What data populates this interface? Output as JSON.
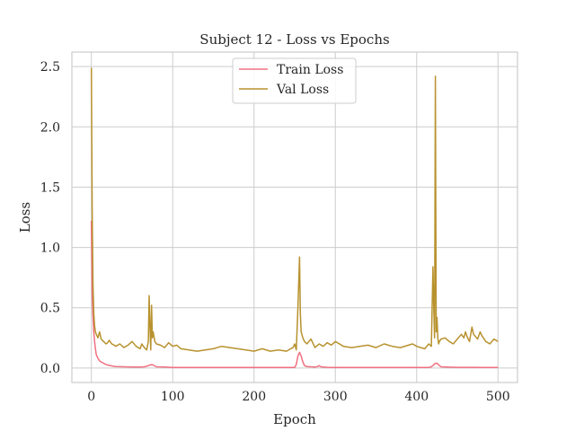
{
  "chart_data": {
    "type": "line",
    "title": "Subject 12 - Loss vs Epochs",
    "xlabel": "Epoch",
    "ylabel": "Loss",
    "xlim": [
      -24,
      524
    ],
    "ylim": [
      -0.12,
      2.62
    ],
    "xticks": [
      0,
      100,
      200,
      300,
      400,
      500
    ],
    "yticks": [
      0.0,
      0.5,
      1.0,
      1.5,
      2.0,
      2.5
    ],
    "xtick_labels": [
      "0",
      "100",
      "200",
      "300",
      "400",
      "500"
    ],
    "ytick_labels": [
      "0.0",
      "0.5",
      "1.0",
      "1.5",
      "2.0",
      "2.5"
    ],
    "grid": true,
    "legend_position": "top-center",
    "series": [
      {
        "name": "Train Loss",
        "color": "#f07080",
        "x": [
          0,
          1,
          2,
          3,
          4,
          5,
          6,
          8,
          10,
          12,
          15,
          18,
          20,
          25,
          30,
          40,
          50,
          60,
          65,
          68,
          70,
          72,
          74,
          76,
          78,
          80,
          90,
          100,
          150,
          200,
          250,
          252,
          254,
          256,
          258,
          260,
          262,
          265,
          270,
          275,
          278,
          280,
          282,
          290,
          300,
          350,
          400,
          415,
          418,
          420,
          422,
          424,
          426,
          428,
          430,
          440,
          450,
          460,
          470,
          480,
          490,
          500
        ],
        "y": [
          1.22,
          0.6,
          0.42,
          0.3,
          0.22,
          0.16,
          0.11,
          0.08,
          0.06,
          0.05,
          0.04,
          0.03,
          0.025,
          0.018,
          0.012,
          0.01,
          0.008,
          0.008,
          0.01,
          0.015,
          0.02,
          0.025,
          0.028,
          0.025,
          0.018,
          0.01,
          0.008,
          0.005,
          0.005,
          0.004,
          0.004,
          0.03,
          0.1,
          0.13,
          0.1,
          0.05,
          0.02,
          0.012,
          0.01,
          0.008,
          0.012,
          0.02,
          0.01,
          0.006,
          0.005,
          0.005,
          0.004,
          0.005,
          0.01,
          0.02,
          0.035,
          0.04,
          0.035,
          0.02,
          0.01,
          0.007,
          0.006,
          0.006,
          0.006,
          0.005,
          0.005,
          0.005
        ]
      },
      {
        "name": "Val Loss",
        "color": "#b8922e",
        "x": [
          0,
          1,
          2,
          3,
          4,
          5,
          6,
          8,
          10,
          12,
          15,
          18,
          20,
          22,
          25,
          28,
          30,
          35,
          40,
          45,
          50,
          55,
          60,
          62,
          65,
          68,
          70,
          71,
          72,
          73,
          74,
          75,
          76,
          78,
          80,
          85,
          90,
          95,
          100,
          105,
          110,
          120,
          130,
          140,
          150,
          160,
          170,
          180,
          190,
          200,
          210,
          220,
          230,
          240,
          245,
          248,
          250,
          252,
          254,
          256,
          257,
          258,
          260,
          262,
          265,
          270,
          275,
          280,
          285,
          290,
          295,
          300,
          310,
          320,
          330,
          340,
          350,
          360,
          370,
          380,
          390,
          395,
          400,
          405,
          410,
          415,
          418,
          420,
          421,
          422,
          423,
          424,
          425,
          426,
          427,
          428,
          430,
          435,
          440,
          445,
          450,
          455,
          458,
          460,
          462,
          465,
          468,
          470,
          475,
          478,
          480,
          485,
          490,
          495,
          500
        ],
        "y": [
          2.49,
          1.3,
          0.7,
          0.45,
          0.35,
          0.3,
          0.28,
          0.25,
          0.3,
          0.24,
          0.22,
          0.2,
          0.21,
          0.23,
          0.2,
          0.19,
          0.18,
          0.2,
          0.17,
          0.19,
          0.22,
          0.18,
          0.16,
          0.2,
          0.17,
          0.15,
          0.22,
          0.6,
          0.35,
          0.15,
          0.52,
          0.25,
          0.3,
          0.22,
          0.2,
          0.19,
          0.17,
          0.21,
          0.18,
          0.19,
          0.16,
          0.15,
          0.14,
          0.15,
          0.16,
          0.18,
          0.17,
          0.16,
          0.15,
          0.14,
          0.16,
          0.14,
          0.15,
          0.14,
          0.16,
          0.17,
          0.2,
          0.15,
          0.5,
          0.92,
          0.45,
          0.3,
          0.25,
          0.22,
          0.2,
          0.24,
          0.17,
          0.2,
          0.18,
          0.21,
          0.19,
          0.22,
          0.18,
          0.17,
          0.18,
          0.19,
          0.17,
          0.2,
          0.18,
          0.17,
          0.19,
          0.2,
          0.18,
          0.17,
          0.16,
          0.2,
          0.18,
          0.84,
          0.5,
          0.25,
          2.42,
          0.3,
          0.42,
          0.25,
          0.2,
          0.22,
          0.24,
          0.25,
          0.22,
          0.2,
          0.24,
          0.28,
          0.25,
          0.3,
          0.26,
          0.22,
          0.34,
          0.28,
          0.24,
          0.3,
          0.27,
          0.22,
          0.2,
          0.24,
          0.22
        ]
      }
    ]
  }
}
